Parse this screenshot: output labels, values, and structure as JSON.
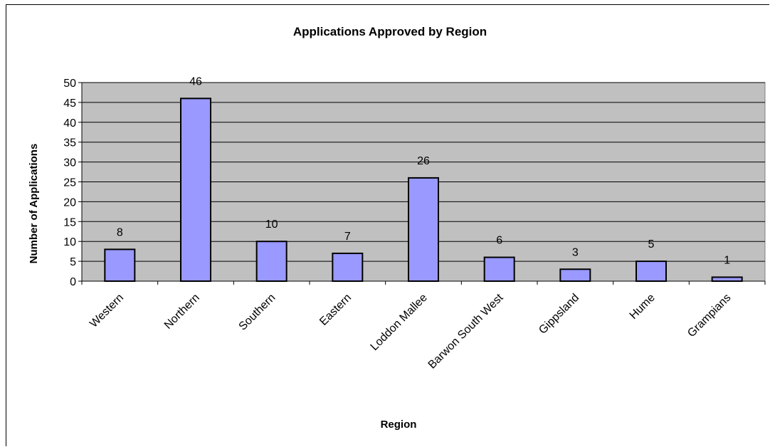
{
  "chart_data": {
    "type": "bar",
    "title": "Applications Approved by Region",
    "xlabel": "Region",
    "ylabel": "Number of Applications",
    "categories": [
      "Western",
      "Northern",
      "Southern",
      "Eastern",
      "Loddon Mallee",
      "Barwon South West",
      "Gippsland",
      "Hume",
      "Grampians"
    ],
    "values": [
      8,
      46,
      10,
      7,
      26,
      6,
      3,
      5,
      1
    ],
    "ylim": [
      0,
      50
    ],
    "yticks": [
      0,
      5,
      10,
      15,
      20,
      25,
      30,
      35,
      40,
      45,
      50
    ],
    "grid": true,
    "legend": "none",
    "colors": {
      "bar": "#9999ff",
      "plot_bg": "#c0c0c0",
      "bar_border": "#000000"
    }
  }
}
